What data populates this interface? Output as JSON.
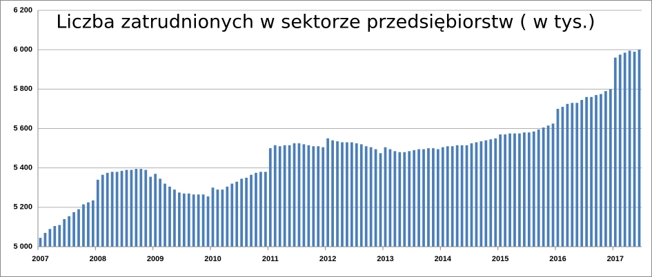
{
  "chart_data": {
    "type": "bar",
    "title": "Liczba zatrudnionych w sektorze przedsiębiorstw ( w tys.)",
    "color": "#4a7ebb",
    "grid": true,
    "categories": [
      "2007",
      null,
      null,
      null,
      null,
      null,
      null,
      null,
      null,
      null,
      null,
      null,
      "2008",
      null,
      null,
      null,
      null,
      null,
      null,
      null,
      null,
      null,
      null,
      null,
      "2009",
      null,
      null,
      null,
      null,
      null,
      null,
      null,
      null,
      null,
      null,
      null,
      "2010",
      null,
      null,
      null,
      null,
      null,
      null,
      null,
      null,
      null,
      null,
      null,
      "2011",
      null,
      null,
      null,
      null,
      null,
      null,
      null,
      null,
      null,
      null,
      null,
      "2012",
      null,
      null,
      null,
      null,
      null,
      null,
      null,
      null,
      null,
      null,
      null,
      "2013",
      null,
      null,
      null,
      null,
      null,
      null,
      null,
      null,
      null,
      null,
      null,
      "2014",
      null,
      null,
      null,
      null,
      null,
      null,
      null,
      null,
      null,
      null,
      null,
      "2015",
      null,
      null,
      null,
      null,
      null,
      null,
      null,
      null,
      null,
      null,
      null,
      "2016",
      null,
      null,
      null,
      null,
      null,
      null,
      null,
      null,
      null,
      null,
      null,
      "2017",
      null,
      null,
      null,
      null,
      null
    ],
    "values": [
      5045,
      5070,
      5090,
      5105,
      5110,
      5140,
      5155,
      5175,
      5190,
      5215,
      5225,
      5235,
      5340,
      5365,
      5375,
      5380,
      5380,
      5385,
      5390,
      5390,
      5395,
      5395,
      5390,
      5355,
      5370,
      5345,
      5320,
      5305,
      5290,
      5275,
      5270,
      5270,
      5265,
      5265,
      5265,
      5255,
      5300,
      5290,
      5290,
      5305,
      5320,
      5330,
      5345,
      5350,
      5365,
      5375,
      5380,
      5380,
      5500,
      5515,
      5510,
      5515,
      5515,
      5525,
      5525,
      5520,
      5515,
      5510,
      5510,
      5505,
      5550,
      5540,
      5535,
      5530,
      5530,
      5530,
      5525,
      5520,
      5510,
      5505,
      5495,
      5475,
      5505,
      5495,
      5485,
      5480,
      5480,
      5485,
      5490,
      5495,
      5495,
      5500,
      5500,
      5495,
      5505,
      5510,
      5510,
      5515,
      5515,
      5515,
      5525,
      5530,
      5535,
      5540,
      5545,
      5550,
      5570,
      5570,
      5575,
      5575,
      5575,
      5580,
      5580,
      5585,
      5595,
      5605,
      5615,
      5625,
      5700,
      5710,
      5725,
      5730,
      5730,
      5745,
      5760,
      5760,
      5770,
      5775,
      5790,
      5800,
      5960,
      5975,
      5985,
      5995,
      5990,
      6000
    ],
    "ylim": [
      5000,
      6200
    ],
    "yticks": [
      {
        "value": 5000,
        "label": "5 000"
      },
      {
        "value": 5200,
        "label": "5 200"
      },
      {
        "value": 5400,
        "label": "5 400"
      },
      {
        "value": 5600,
        "label": "5 600"
      },
      {
        "value": 5800,
        "label": "5 800"
      },
      {
        "value": 6000,
        "label": "6 000"
      },
      {
        "value": 6200,
        "label": "6 200"
      }
    ]
  }
}
